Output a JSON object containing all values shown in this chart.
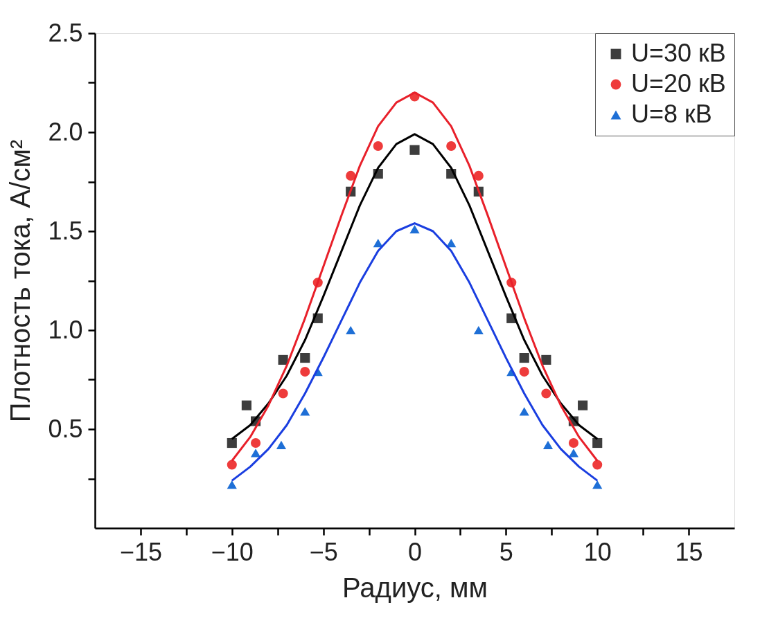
{
  "chart_data": {
    "type": "scatter",
    "xlabel": "Радиус, мм",
    "ylabel": "Плотность тока, А/см²",
    "xlim": [
      -17.5,
      17.5
    ],
    "ylim": [
      0,
      2.5
    ],
    "xticks": [
      {
        "value": -15,
        "label": "−15"
      },
      {
        "value": -12.5,
        "label": null
      },
      {
        "value": -10,
        "label": "−10"
      },
      {
        "value": -7.5,
        "label": null
      },
      {
        "value": -5,
        "label": "−5"
      },
      {
        "value": -2.5,
        "label": null
      },
      0,
      {
        "value": 2.5,
        "label": null
      },
      5,
      {
        "value": 7.5,
        "label": null
      },
      10,
      {
        "value": 12.5,
        "label": null
      },
      15
    ],
    "yticks": [
      {
        "value": 0.25,
        "label": null
      },
      0.5,
      {
        "value": 0.75,
        "label": null
      },
      {
        "value": 1.0,
        "label": "1.0"
      },
      {
        "value": 1.25,
        "label": null
      },
      1.5,
      {
        "value": 1.75,
        "label": null
      },
      {
        "value": 2.0,
        "label": "2.0"
      },
      {
        "value": 2.25,
        "label": null
      },
      2.5
    ],
    "legend": "top right",
    "grid": false,
    "series": [
      {
        "name": "U=30 кВ",
        "color": "#3d3d3d",
        "marker": "square",
        "x": [
          -10,
          -9.2,
          -8.7,
          -7.2,
          -6,
          -5.3,
          -3.5,
          -2,
          0,
          2,
          3.5,
          5.3,
          6,
          7.2,
          8.7,
          9.2,
          10
        ],
        "values": [
          0.43,
          0.62,
          0.54,
          0.85,
          0.86,
          1.06,
          1.7,
          1.79,
          1.91,
          1.79,
          1.7,
          1.06,
          0.86,
          0.85,
          0.54,
          0.62,
          0.43
        ]
      },
      {
        "name": "U=20 кВ",
        "color": "#ee3b3b",
        "marker": "circle",
        "x": [
          -10,
          -8.7,
          -7.2,
          -6,
          -5.3,
          -3.5,
          -2,
          0,
          2,
          3.5,
          5.3,
          6,
          7.2,
          8.7,
          10
        ],
        "values": [
          0.32,
          0.43,
          0.68,
          0.79,
          1.24,
          1.78,
          1.93,
          2.18,
          1.93,
          1.78,
          1.24,
          0.79,
          0.68,
          0.43,
          0.32
        ]
      },
      {
        "name": "U=8 кВ",
        "color": "#1e6fd6",
        "marker": "triangle",
        "x": [
          -10,
          -8.7,
          -7.3,
          -6,
          -5.3,
          -3.5,
          -2,
          0,
          2,
          3.5,
          5.3,
          6,
          7.3,
          8.7,
          10
        ],
        "values": [
          0.22,
          0.38,
          0.42,
          0.59,
          0.79,
          1.0,
          1.44,
          1.51,
          1.44,
          1.0,
          0.79,
          0.59,
          0.42,
          0.38,
          0.22
        ]
      },
      {
        "type": "line",
        "color": "#000000",
        "marker": "none",
        "x": [
          -10,
          -9,
          -8,
          -7,
          -6,
          -5,
          -4,
          -3,
          -2,
          -1,
          0,
          1,
          2,
          3,
          4,
          5,
          6,
          7,
          8,
          9,
          10
        ],
        "values": [
          0.45,
          0.52,
          0.63,
          0.77,
          0.95,
          1.17,
          1.4,
          1.63,
          1.82,
          1.94,
          1.99,
          1.94,
          1.82,
          1.63,
          1.4,
          1.17,
          0.95,
          0.77,
          0.63,
          0.52,
          0.45
        ]
      },
      {
        "type": "line",
        "color": "#e8202a",
        "marker": "none",
        "x": [
          -10,
          -9,
          -8,
          -7,
          -6,
          -5,
          -4,
          -3,
          -2,
          -1,
          0,
          1,
          2,
          3,
          4,
          5,
          6,
          7,
          8,
          9,
          10
        ],
        "values": [
          0.34,
          0.46,
          0.62,
          0.82,
          1.06,
          1.32,
          1.58,
          1.83,
          2.03,
          2.15,
          2.2,
          2.15,
          2.03,
          1.83,
          1.58,
          1.32,
          1.06,
          0.82,
          0.62,
          0.46,
          0.34
        ]
      },
      {
        "type": "line",
        "color": "#1a3ee0",
        "marker": "none",
        "x": [
          -10,
          -9,
          -8,
          -7,
          -6,
          -5,
          -4,
          -3,
          -2,
          -1,
          0,
          1,
          2,
          3,
          4,
          5,
          6,
          7,
          8,
          9,
          10
        ],
        "values": [
          0.24,
          0.31,
          0.4,
          0.52,
          0.68,
          0.86,
          1.05,
          1.24,
          1.4,
          1.5,
          1.54,
          1.5,
          1.4,
          1.24,
          1.05,
          0.86,
          0.68,
          0.52,
          0.4,
          0.31,
          0.24
        ]
      }
    ]
  }
}
